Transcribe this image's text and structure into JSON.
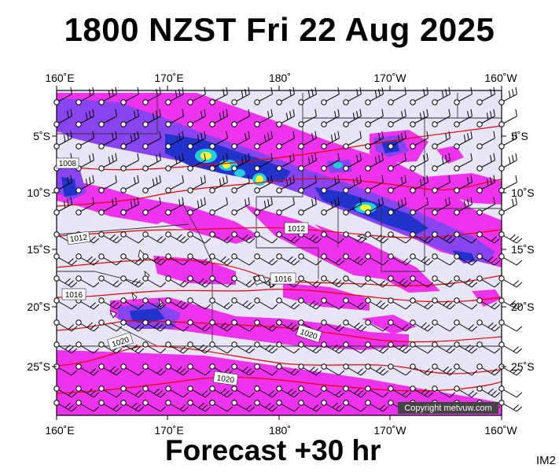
{
  "header": {
    "title": "1800 NZST Fri 22 Aug 2025"
  },
  "footer": {
    "forecast_label": "Forecast +30 hr",
    "image_code": "IM2"
  },
  "copyright": "Copyright metvuw.com",
  "axes": {
    "longitude_labels": [
      "160˚E",
      "170˚E",
      "180˚",
      "170˚W",
      "160˚W"
    ],
    "latitude_labels": [
      "5˚S",
      "10˚S",
      "15˚S",
      "20˚S",
      "25˚S"
    ]
  },
  "isobars": [
    {
      "label": "1008",
      "pressure_hpa": 1008
    },
    {
      "label": "1012",
      "pressure_hpa": 1012
    },
    {
      "label": "1012",
      "pressure_hpa": 1012
    },
    {
      "label": "1016",
      "pressure_hpa": 1016
    },
    {
      "label": "1016",
      "pressure_hpa": 1016
    },
    {
      "label": "1020",
      "pressure_hpa": 1020
    },
    {
      "label": "1020",
      "pressure_hpa": 1020
    },
    {
      "label": "1020",
      "pressure_hpa": 1020
    }
  ],
  "colors": {
    "ocean": "#e6e6f8",
    "rain_light": "#ee33ee",
    "rain_moderate": "#8844ee",
    "rain_heavy": "#2222cc",
    "rain_intense": "#22ccdd",
    "rain_extreme": "#ffff33",
    "isobar": "#ee0000",
    "boundary": "#333333",
    "wind_barb": "#000000"
  },
  "map": {
    "projection": "equirectangular",
    "lon_range": [
      160,
      200
    ],
    "lat_range": [
      -2,
      -29
    ],
    "legend": "none",
    "wind_barbs": "grid of station circles with barbs"
  }
}
